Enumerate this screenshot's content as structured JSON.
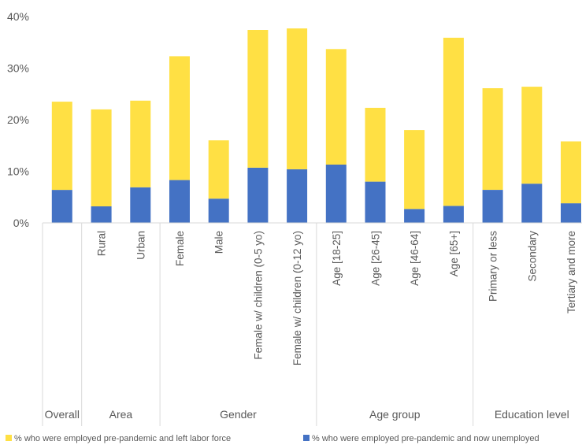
{
  "chart_data": {
    "type": "bar",
    "stacked": true,
    "title": "",
    "xlabel": "",
    "ylabel": "",
    "ylim": [
      0,
      40
    ],
    "y_ticks": [
      "0%",
      "10%",
      "20%",
      "30%",
      "40%"
    ],
    "y_tick_values": [
      0,
      10,
      20,
      30,
      40
    ],
    "grid": false,
    "legend_position": "bottom",
    "categories": [
      "",
      "Rural",
      "Urban",
      "Female",
      "Male",
      "Female w/ children (0-5 yo)",
      "Female w/ children (0-12 yo)",
      "Age [18-25]",
      "Age [26-45]",
      "Age [46-64]",
      "Age [65+]",
      "Primary or less",
      "Secondary",
      "Tertiary and more"
    ],
    "groups": [
      {
        "label": "Overall",
        "count": 1
      },
      {
        "label": "Area",
        "count": 2
      },
      {
        "label": "Gender",
        "count": 4
      },
      {
        "label": "Age group",
        "count": 4
      },
      {
        "label": "Education level",
        "count": 3
      }
    ],
    "series": [
      {
        "name": "% who were employed pre-pandemic and now unemployed",
        "color": "#4472C4",
        "values": [
          6.4,
          3.2,
          6.9,
          8.3,
          4.7,
          10.7,
          10.4,
          11.3,
          8.0,
          2.7,
          3.3,
          6.4,
          7.6,
          3.8
        ]
      },
      {
        "name": "% who were employed pre-pandemic and left labor force",
        "color": "#FFE044",
        "values": [
          17.1,
          18.8,
          16.8,
          24.0,
          11.3,
          26.7,
          27.3,
          22.4,
          14.3,
          15.3,
          32.6,
          19.7,
          18.8,
          12.0
        ]
      }
    ],
    "legend": [
      {
        "name": "% who were employed pre-pandemic and left labor force",
        "color": "#FFE044"
      },
      {
        "name": "% who were employed pre-pandemic and now unemployed",
        "color": "#4472C4"
      }
    ]
  }
}
